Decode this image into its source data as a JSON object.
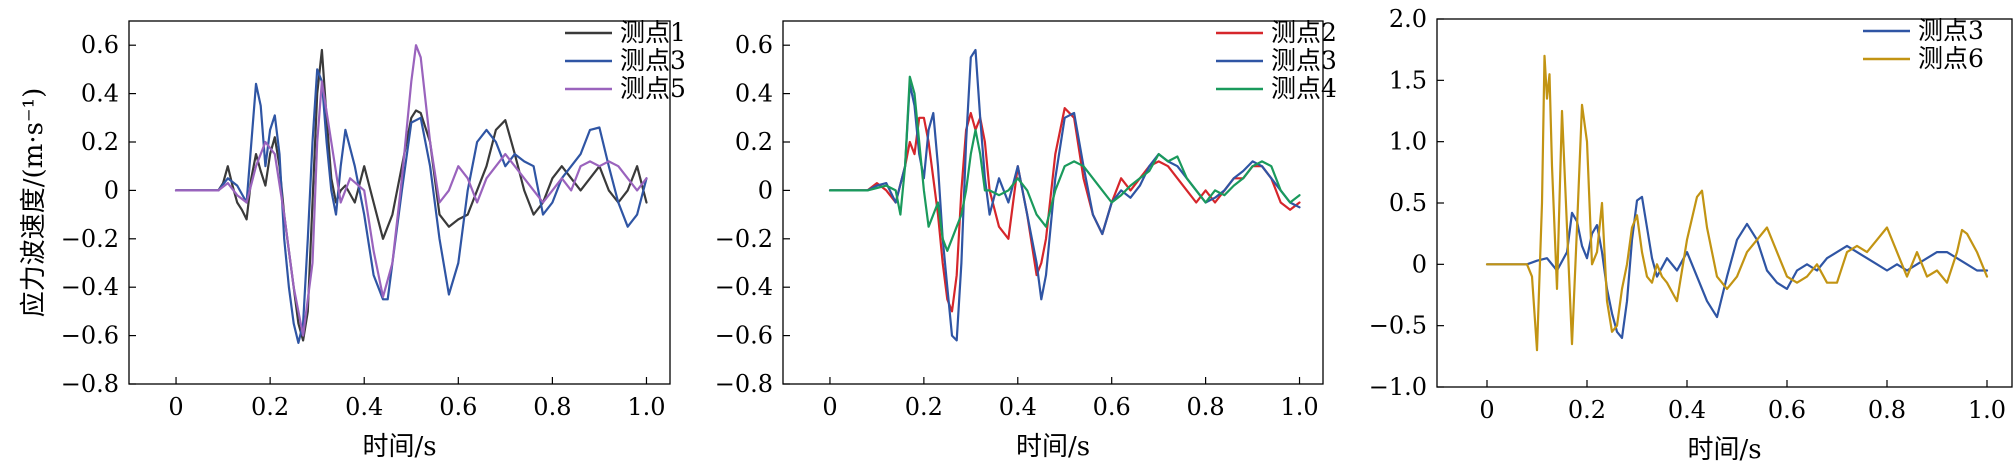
{
  "chart_data": [
    {
      "type": "line",
      "xlabel": "时间/s",
      "ylabel": "应力波速度/(m·s⁻¹)",
      "xlim": [
        -0.1,
        1.05
      ],
      "ylim": [
        -0.8,
        0.7
      ],
      "xticks": [
        0,
        0.2,
        0.4,
        0.6,
        0.8,
        1.0
      ],
      "xtick_labels": [
        "0",
        "0.2",
        "0.4",
        "0.6",
        "0.8",
        "1.0"
      ],
      "yticks": [
        -0.8,
        -0.6,
        -0.4,
        -0.2,
        0,
        0.2,
        0.4,
        0.6
      ],
      "ytick_labels": [
        "−0.8",
        "−0.6",
        "−0.4",
        "−0.2",
        "0",
        "0.2",
        "0.4",
        "0.6"
      ],
      "grid": false,
      "legend_position": "top-right",
      "series": [
        {
          "name": "测点1",
          "color": "#3a3a3a",
          "x": [
            0,
            0.09,
            0.1,
            0.11,
            0.12,
            0.13,
            0.14,
            0.15,
            0.16,
            0.17,
            0.18,
            0.19,
            0.2,
            0.21,
            0.22,
            0.23,
            0.24,
            0.25,
            0.26,
            0.27,
            0.28,
            0.29,
            0.3,
            0.31,
            0.32,
            0.33,
            0.34,
            0.35,
            0.36,
            0.38,
            0.4,
            0.42,
            0.44,
            0.46,
            0.48,
            0.5,
            0.51,
            0.52,
            0.54,
            0.56,
            0.58,
            0.6,
            0.62,
            0.64,
            0.66,
            0.68,
            0.7,
            0.72,
            0.74,
            0.76,
            0.78,
            0.8,
            0.82,
            0.84,
            0.86,
            0.88,
            0.9,
            0.92,
            0.94,
            0.96,
            0.98,
            1.0
          ],
          "y": [
            0,
            0.0,
            0.03,
            0.1,
            0.02,
            -0.05,
            -0.08,
            -0.12,
            0.05,
            0.15,
            0.08,
            0.02,
            0.15,
            0.22,
            0.1,
            -0.1,
            -0.25,
            -0.4,
            -0.55,
            -0.62,
            -0.5,
            -0.05,
            0.4,
            0.58,
            0.3,
            0.05,
            -0.05,
            0.0,
            0.02,
            -0.05,
            0.1,
            -0.05,
            -0.2,
            -0.1,
            0.1,
            0.3,
            0.33,
            0.32,
            0.2,
            -0.1,
            -0.15,
            -0.12,
            -0.1,
            0.0,
            0.1,
            0.25,
            0.29,
            0.15,
            0.0,
            -0.1,
            -0.05,
            0.05,
            0.1,
            0.05,
            0.0,
            0.05,
            0.1,
            0.0,
            -0.05,
            0.0,
            0.1,
            -0.05
          ]
        },
        {
          "name": "测点3",
          "color": "#2f55a4",
          "x": [
            0,
            0.09,
            0.11,
            0.13,
            0.15,
            0.17,
            0.18,
            0.19,
            0.2,
            0.21,
            0.22,
            0.23,
            0.24,
            0.25,
            0.26,
            0.27,
            0.28,
            0.29,
            0.3,
            0.31,
            0.32,
            0.33,
            0.34,
            0.35,
            0.36,
            0.38,
            0.4,
            0.42,
            0.44,
            0.45,
            0.46,
            0.48,
            0.5,
            0.52,
            0.54,
            0.56,
            0.58,
            0.6,
            0.62,
            0.64,
            0.66,
            0.68,
            0.7,
            0.72,
            0.74,
            0.76,
            0.78,
            0.8,
            0.82,
            0.84,
            0.86,
            0.88,
            0.9,
            0.92,
            0.94,
            0.96,
            0.98,
            1.0
          ],
          "y": [
            0,
            0.0,
            0.05,
            0.02,
            -0.05,
            0.44,
            0.35,
            0.1,
            0.25,
            0.31,
            0.15,
            -0.2,
            -0.4,
            -0.55,
            -0.63,
            -0.55,
            -0.2,
            0.2,
            0.5,
            0.45,
            0.2,
            0.0,
            -0.1,
            0.1,
            0.25,
            0.1,
            -0.1,
            -0.35,
            -0.45,
            -0.45,
            -0.3,
            0.0,
            0.28,
            0.3,
            0.1,
            -0.2,
            -0.43,
            -0.3,
            0.0,
            0.2,
            0.25,
            0.2,
            0.1,
            0.15,
            0.12,
            0.1,
            -0.1,
            -0.05,
            0.05,
            0.1,
            0.15,
            0.25,
            0.26,
            0.1,
            -0.05,
            -0.15,
            -0.1,
            0.05
          ]
        },
        {
          "name": "测点5",
          "color": "#9a63bd",
          "x": [
            0,
            0.09,
            0.11,
            0.13,
            0.15,
            0.17,
            0.19,
            0.21,
            0.23,
            0.25,
            0.27,
            0.29,
            0.3,
            0.31,
            0.33,
            0.35,
            0.37,
            0.4,
            0.42,
            0.44,
            0.46,
            0.48,
            0.5,
            0.51,
            0.52,
            0.54,
            0.56,
            0.58,
            0.6,
            0.62,
            0.64,
            0.66,
            0.68,
            0.7,
            0.72,
            0.74,
            0.76,
            0.78,
            0.8,
            0.82,
            0.84,
            0.86,
            0.88,
            0.9,
            0.92,
            0.94,
            0.96,
            0.98,
            1.0
          ],
          "y": [
            0,
            0.0,
            0.03,
            -0.02,
            -0.05,
            0.1,
            0.2,
            0.15,
            -0.1,
            -0.4,
            -0.6,
            -0.3,
            0.2,
            0.45,
            0.2,
            -0.05,
            0.05,
            0.0,
            -0.25,
            -0.44,
            -0.3,
            0.05,
            0.45,
            0.6,
            0.55,
            0.2,
            -0.05,
            0.0,
            0.1,
            0.05,
            -0.05,
            0.05,
            0.1,
            0.15,
            0.1,
            0.05,
            0.0,
            -0.05,
            0.0,
            0.05,
            0.0,
            0.1,
            0.12,
            0.1,
            0.12,
            0.1,
            0.05,
            0.0,
            0.05
          ]
        }
      ]
    },
    {
      "type": "line",
      "xlabel": "时间/s",
      "ylabel": "",
      "xlim": [
        -0.1,
        1.05
      ],
      "ylim": [
        -0.8,
        0.7
      ],
      "xticks": [
        0,
        0.2,
        0.4,
        0.6,
        0.8,
        1.0
      ],
      "xtick_labels": [
        "0",
        "0.2",
        "0.4",
        "0.6",
        "0.8",
        "1.0"
      ],
      "yticks": [
        -0.8,
        -0.6,
        -0.4,
        -0.2,
        0,
        0.2,
        0.4,
        0.6
      ],
      "ytick_labels": [
        "−0.8",
        "−0.6",
        "−0.4",
        "−0.2",
        "0",
        "0.2",
        "0.4",
        "0.6"
      ],
      "grid": false,
      "legend_position": "top-right",
      "series": [
        {
          "name": "测点2",
          "color": "#d6262b",
          "x": [
            0,
            0.08,
            0.1,
            0.12,
            0.14,
            0.16,
            0.17,
            0.18,
            0.19,
            0.2,
            0.21,
            0.22,
            0.23,
            0.24,
            0.25,
            0.26,
            0.27,
            0.28,
            0.29,
            0.3,
            0.31,
            0.32,
            0.33,
            0.34,
            0.36,
            0.38,
            0.4,
            0.42,
            0.44,
            0.45,
            0.46,
            0.48,
            0.5,
            0.52,
            0.54,
            0.56,
            0.58,
            0.6,
            0.62,
            0.64,
            0.66,
            0.68,
            0.7,
            0.72,
            0.74,
            0.76,
            0.78,
            0.8,
            0.82,
            0.84,
            0.86,
            0.88,
            0.9,
            0.92,
            0.94,
            0.96,
            0.98,
            1.0
          ],
          "y": [
            0,
            0.0,
            0.03,
            0.0,
            -0.05,
            0.1,
            0.2,
            0.15,
            0.3,
            0.3,
            0.2,
            0.05,
            -0.1,
            -0.3,
            -0.45,
            -0.5,
            -0.35,
            0.0,
            0.25,
            0.32,
            0.25,
            0.3,
            0.2,
            0.0,
            -0.15,
            -0.2,
            0.1,
            -0.1,
            -0.35,
            -0.3,
            -0.2,
            0.15,
            0.34,
            0.3,
            0.05,
            -0.1,
            -0.18,
            -0.05,
            0.05,
            0.0,
            0.05,
            0.1,
            0.12,
            0.1,
            0.05,
            0.0,
            -0.05,
            0.0,
            -0.05,
            0.0,
            0.05,
            0.05,
            0.1,
            0.1,
            0.05,
            -0.05,
            -0.08,
            -0.05
          ]
        },
        {
          "name": "测点3",
          "color": "#2f55a4",
          "x": [
            0,
            0.08,
            0.1,
            0.12,
            0.14,
            0.16,
            0.17,
            0.18,
            0.19,
            0.2,
            0.21,
            0.22,
            0.23,
            0.24,
            0.25,
            0.26,
            0.27,
            0.28,
            0.29,
            0.3,
            0.31,
            0.32,
            0.33,
            0.34,
            0.36,
            0.38,
            0.4,
            0.42,
            0.44,
            0.45,
            0.46,
            0.48,
            0.5,
            0.52,
            0.54,
            0.56,
            0.58,
            0.6,
            0.62,
            0.64,
            0.66,
            0.68,
            0.7,
            0.72,
            0.74,
            0.76,
            0.78,
            0.8,
            0.82,
            0.84,
            0.86,
            0.88,
            0.9,
            0.92,
            0.94,
            0.96,
            0.98,
            1.0
          ],
          "y": [
            0,
            0.0,
            0.02,
            0.03,
            -0.05,
            0.1,
            0.44,
            0.35,
            0.15,
            0.05,
            0.25,
            0.32,
            0.1,
            -0.2,
            -0.4,
            -0.6,
            -0.62,
            -0.3,
            0.2,
            0.55,
            0.58,
            0.3,
            0.05,
            -0.1,
            0.05,
            -0.05,
            0.1,
            -0.1,
            -0.3,
            -0.45,
            -0.35,
            0.05,
            0.3,
            0.32,
            0.1,
            -0.1,
            -0.18,
            -0.05,
            0.0,
            -0.03,
            0.02,
            0.1,
            0.15,
            0.12,
            0.1,
            0.05,
            0.0,
            -0.05,
            -0.03,
            0.0,
            0.05,
            0.08,
            0.12,
            0.1,
            0.05,
            0.0,
            -0.05,
            -0.07
          ]
        },
        {
          "name": "测点4",
          "color": "#1a9a5c",
          "x": [
            0,
            0.08,
            0.1,
            0.12,
            0.14,
            0.15,
            0.16,
            0.17,
            0.18,
            0.19,
            0.2,
            0.21,
            0.22,
            0.23,
            0.24,
            0.25,
            0.26,
            0.27,
            0.28,
            0.29,
            0.3,
            0.31,
            0.32,
            0.33,
            0.34,
            0.36,
            0.38,
            0.4,
            0.42,
            0.44,
            0.46,
            0.48,
            0.5,
            0.52,
            0.54,
            0.56,
            0.58,
            0.6,
            0.62,
            0.64,
            0.66,
            0.68,
            0.7,
            0.72,
            0.74,
            0.76,
            0.78,
            0.8,
            0.82,
            0.84,
            0.86,
            0.88,
            0.9,
            0.92,
            0.94,
            0.96,
            0.98,
            1.0
          ],
          "y": [
            0,
            0.0,
            0.01,
            0.02,
            0.0,
            -0.1,
            0.1,
            0.47,
            0.4,
            0.2,
            0.0,
            -0.15,
            -0.1,
            -0.05,
            -0.2,
            -0.25,
            -0.2,
            -0.15,
            -0.1,
            0.0,
            0.15,
            0.25,
            0.15,
            0.0,
            0.0,
            -0.02,
            0.0,
            0.05,
            0.0,
            -0.1,
            -0.15,
            0.0,
            0.1,
            0.12,
            0.1,
            0.05,
            0.0,
            -0.05,
            -0.02,
            0.02,
            0.05,
            0.08,
            0.15,
            0.12,
            0.14,
            0.05,
            0.0,
            -0.05,
            0.0,
            -0.02,
            0.02,
            0.05,
            0.1,
            0.12,
            0.1,
            0.0,
            -0.05,
            -0.02
          ]
        }
      ]
    },
    {
      "type": "line",
      "xlabel": "时间/s",
      "ylabel": "",
      "xlim": [
        -0.1,
        1.05
      ],
      "ylim": [
        -1.0,
        2.0
      ],
      "xticks": [
        0,
        0.2,
        0.4,
        0.6,
        0.8,
        1.0
      ],
      "xtick_labels": [
        "0",
        "0.2",
        "0.4",
        "0.6",
        "0.8",
        "1.0"
      ],
      "yticks": [
        -1.0,
        -0.5,
        0,
        0.5,
        1.0,
        1.5,
        2.0
      ],
      "ytick_labels": [
        "−1.0",
        "−0.5",
        "0",
        "0.5",
        "1.0",
        "1.5",
        "2.0"
      ],
      "grid": false,
      "legend_position": "top-right",
      "series": [
        {
          "name": "测点3",
          "color": "#2f55a4",
          "x": [
            0,
            0.08,
            0.1,
            0.12,
            0.14,
            0.16,
            0.17,
            0.18,
            0.19,
            0.2,
            0.21,
            0.22,
            0.23,
            0.24,
            0.25,
            0.26,
            0.27,
            0.28,
            0.29,
            0.3,
            0.31,
            0.32,
            0.33,
            0.34,
            0.36,
            0.38,
            0.4,
            0.42,
            0.44,
            0.46,
            0.48,
            0.5,
            0.52,
            0.54,
            0.56,
            0.58,
            0.6,
            0.62,
            0.64,
            0.66,
            0.68,
            0.7,
            0.72,
            0.74,
            0.76,
            0.78,
            0.8,
            0.82,
            0.84,
            0.86,
            0.88,
            0.9,
            0.92,
            0.94,
            0.96,
            0.98,
            1.0
          ],
          "y": [
            0,
            0.0,
            0.03,
            0.05,
            -0.05,
            0.1,
            0.42,
            0.35,
            0.15,
            0.05,
            0.25,
            0.32,
            0.1,
            -0.2,
            -0.4,
            -0.55,
            -0.6,
            -0.3,
            0.2,
            0.52,
            0.55,
            0.3,
            0.05,
            -0.1,
            0.05,
            -0.05,
            0.1,
            -0.1,
            -0.3,
            -0.43,
            -0.1,
            0.2,
            0.33,
            0.2,
            -0.05,
            -0.15,
            -0.2,
            -0.05,
            0.0,
            -0.05,
            0.05,
            0.1,
            0.15,
            0.1,
            0.05,
            0.0,
            -0.05,
            0.0,
            -0.05,
            0.0,
            0.05,
            0.1,
            0.1,
            0.05,
            0.0,
            -0.05,
            -0.05
          ]
        },
        {
          "name": "测点6",
          "color": "#c29413",
          "x": [
            0,
            0.08,
            0.09,
            0.1,
            0.11,
            0.115,
            0.12,
            0.125,
            0.13,
            0.14,
            0.15,
            0.16,
            0.17,
            0.18,
            0.19,
            0.2,
            0.21,
            0.22,
            0.23,
            0.24,
            0.25,
            0.26,
            0.27,
            0.28,
            0.29,
            0.3,
            0.31,
            0.32,
            0.33,
            0.34,
            0.35,
            0.36,
            0.38,
            0.4,
            0.42,
            0.43,
            0.44,
            0.46,
            0.48,
            0.5,
            0.52,
            0.54,
            0.56,
            0.58,
            0.6,
            0.62,
            0.64,
            0.66,
            0.68,
            0.7,
            0.72,
            0.74,
            0.76,
            0.78,
            0.8,
            0.82,
            0.84,
            0.86,
            0.88,
            0.9,
            0.92,
            0.94,
            0.95,
            0.96,
            0.98,
            1.0
          ],
          "y": [
            0,
            0.0,
            -0.1,
            -0.7,
            0.5,
            1.7,
            1.35,
            1.55,
            0.8,
            -0.2,
            1.25,
            0.3,
            -0.65,
            0.3,
            1.3,
            1.0,
            0.0,
            0.1,
            0.5,
            -0.3,
            -0.55,
            -0.5,
            -0.2,
            0.0,
            0.3,
            0.4,
            0.1,
            -0.1,
            -0.15,
            0.0,
            -0.1,
            -0.15,
            -0.3,
            0.2,
            0.55,
            0.6,
            0.3,
            -0.1,
            -0.2,
            -0.1,
            0.1,
            0.2,
            0.3,
            0.1,
            -0.1,
            -0.15,
            -0.1,
            0.0,
            -0.15,
            -0.15,
            0.1,
            0.15,
            0.1,
            0.2,
            0.3,
            0.1,
            -0.1,
            0.1,
            -0.1,
            -0.05,
            -0.15,
            0.1,
            0.28,
            0.25,
            0.1,
            -0.1
          ]
        }
      ]
    }
  ]
}
